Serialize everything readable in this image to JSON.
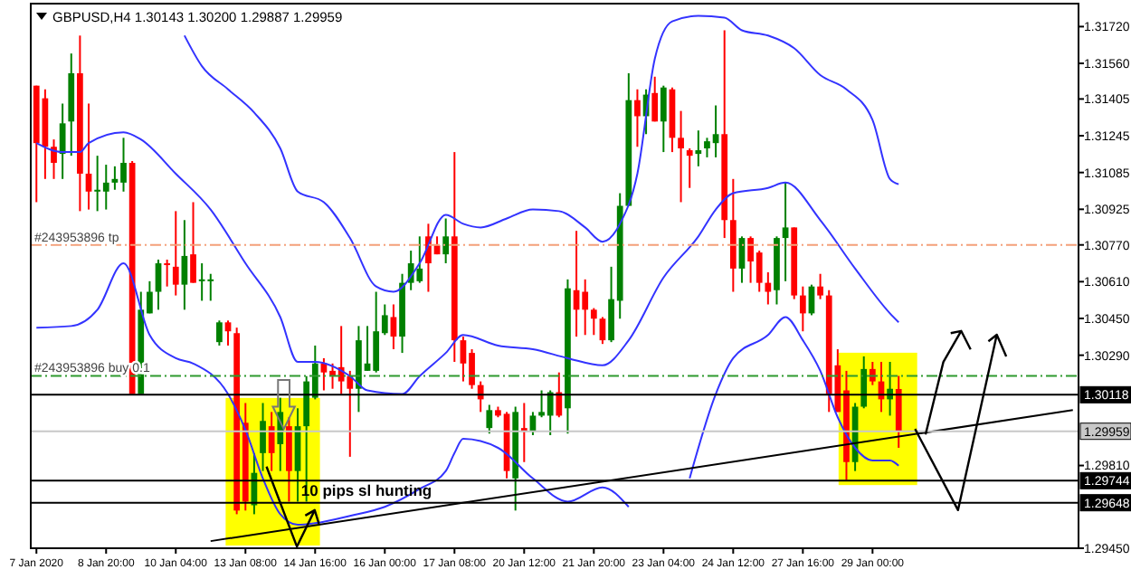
{
  "chart_data": {
    "type": "candlestick",
    "title": "GBPUSD,H4  1.30143 1.30200 1.29887 1.29959",
    "categories": [
      "7 Jan 2020",
      null,
      null,
      null,
      null,
      null,
      null,
      null,
      "8 Jan 20:00",
      null,
      null,
      null,
      null,
      null,
      null,
      null,
      "10 Jan 04:00",
      null,
      null,
      null,
      null,
      null,
      null,
      null,
      "13 Jan 08:00",
      null,
      null,
      null,
      null,
      null,
      null,
      null,
      "14 Jan 16:00",
      null,
      null,
      null,
      null,
      null,
      null,
      null,
      "16 Jan 00:00",
      null,
      null,
      null,
      null,
      null,
      null,
      null,
      "17 Jan 08:00",
      null,
      null,
      null,
      null,
      null,
      null,
      null,
      "20 Jan 12:00",
      null,
      null,
      null,
      null,
      null,
      null,
      null,
      "21 Jan 20:00",
      null,
      null,
      null,
      null,
      null,
      null,
      null,
      "23 Jan 04:00",
      null,
      null,
      null,
      null,
      null,
      null,
      null,
      "24 Jan 12:00",
      null,
      null,
      null,
      null,
      null,
      null,
      null,
      "27 Jan 16:00",
      null,
      null,
      null,
      null,
      null,
      null,
      null,
      "29 Jan 00:00",
      null,
      null,
      null,
      null,
      null,
      null,
      null,
      null,
      null,
      null,
      null,
      null,
      null,
      null,
      null,
      null,
      null,
      null,
      null,
      null,
      null,
      null,
      null
    ],
    "ohlc": [
      [
        1.31463,
        1.31463,
        1.30956,
        1.31213
      ],
      [
        1.31408,
        1.31447,
        1.31057,
        1.31197
      ],
      [
        1.31197,
        1.31229,
        1.31057,
        1.31127
      ],
      [
        1.31166,
        1.31385,
        1.31057,
        1.31299
      ],
      [
        1.31307,
        1.31603,
        1.31158,
        1.31517
      ],
      [
        1.31517,
        1.31681,
        1.30917,
        1.3108
      ],
      [
        1.3108,
        1.31385,
        1.30924,
        1.31002
      ],
      [
        1.31002,
        1.31158,
        1.30917,
        1.3101
      ],
      [
        1.31002,
        1.31119,
        1.30924,
        1.31041
      ],
      [
        1.31041,
        1.31112,
        1.3101,
        1.31057
      ],
      [
        1.31041,
        1.31236,
        1.31002,
        1.31127
      ],
      [
        1.31127,
        1.31135,
        1.30121,
        1.30121
      ],
      [
        1.30121,
        1.30566,
        1.30121,
        1.30488
      ],
      [
        1.30472,
        1.30612,
        1.30472,
        1.30566
      ],
      [
        1.30566,
        1.30706,
        1.30488,
        1.3069
      ],
      [
        1.3069,
        1.30706,
        1.30589,
        1.30683
      ],
      [
        1.30675,
        1.30917,
        1.3055,
        1.30597
      ],
      [
        1.30597,
        1.30878,
        1.30488,
        1.30722
      ],
      [
        1.30729,
        1.30956,
        1.30605,
        1.30605
      ],
      [
        1.30612,
        1.3069,
        1.30527,
        1.3062
      ],
      [
        1.30612,
        1.30644,
        1.30527,
        1.3062
      ],
      [
        1.30347,
        1.30441,
        1.30332,
        1.30433
      ],
      [
        1.30433,
        1.30441,
        1.30332,
        1.30394
      ],
      [
        1.30386,
        1.3041,
        1.29598,
        1.29614
      ],
      [
        1.29996,
        1.30082,
        1.29614,
        1.29653
      ],
      [
        1.29637,
        1.29864,
        1.29598,
        1.29778
      ],
      [
        1.29864,
        1.30082,
        1.29786,
        1.30004
      ],
      [
        1.29981,
        1.30043,
        1.29786,
        1.29864
      ],
      [
        1.29903,
        1.30105,
        1.29786,
        1.30043
      ],
      [
        1.29981,
        1.3002,
        1.29653,
        1.29786
      ],
      [
        1.29786,
        1.30059,
        1.29653,
        1.29981
      ],
      [
        1.29981,
        1.30199,
        1.29653,
        1.30176
      ],
      [
        1.30105,
        1.30332,
        1.30098,
        1.30254
      ],
      [
        1.30254,
        1.30277,
        1.30137,
        1.30215
      ],
      [
        1.30222,
        1.30254,
        1.30144,
        1.30199
      ],
      [
        1.30238,
        1.30417,
        1.30121,
        1.30176
      ],
      [
        1.30199,
        1.30222,
        1.29848,
        1.30144
      ],
      [
        1.30144,
        1.30417,
        1.30043,
        1.30355
      ],
      [
        1.30222,
        1.30417,
        1.30222,
        1.30254
      ],
      [
        1.30222,
        1.30566,
        1.30215,
        1.30394
      ],
      [
        1.30386,
        1.30511,
        1.30378,
        1.30464
      ],
      [
        1.30456,
        1.30511,
        1.30316,
        1.30371
      ],
      [
        1.30371,
        1.30644,
        1.303,
        1.30605
      ],
      [
        1.30605,
        1.30745,
        1.30573,
        1.3069
      ],
      [
        1.30612,
        1.30807,
        1.30605,
        1.30667
      ],
      [
        1.30807,
        1.30862,
        1.30566,
        1.3069
      ],
      [
        1.30768,
        1.30807,
        1.30729,
        1.30729
      ],
      [
        1.30729,
        1.30885,
        1.3069,
        1.30807
      ],
      [
        1.30807,
        1.31174,
        1.30261,
        1.30355
      ],
      [
        1.30355,
        1.30371,
        1.30176,
        1.30254
      ],
      [
        1.303,
        1.30316,
        1.30144,
        1.3016
      ],
      [
        1.3016,
        1.30176,
        1.30043,
        1.30098
      ],
      [
        1.29973,
        1.30074,
        1.29949,
        1.30051
      ],
      [
        1.30051,
        1.30066,
        1.3002,
        1.30027
      ],
      [
        1.30035,
        1.30043,
        1.29754,
        1.29786
      ],
      [
        1.29754,
        1.30066,
        1.29614,
        1.30043
      ],
      [
        1.29973,
        1.30082,
        1.29825,
        1.29957
      ],
      [
        1.29957,
        1.30043,
        1.29942,
        1.30027
      ],
      [
        1.30027,
        1.30137,
        1.3002,
        1.30043
      ],
      [
        1.30027,
        1.30137,
        1.29942,
        1.30129
      ],
      [
        1.30129,
        1.30215,
        1.3002,
        1.30027
      ],
      [
        1.30059,
        1.3062,
        1.29949,
        1.30581
      ],
      [
        1.30573,
        1.30831,
        1.30371,
        1.30488
      ],
      [
        1.30566,
        1.3062,
        1.30378,
        1.30488
      ],
      [
        1.30488,
        1.30495,
        1.30378,
        1.30449
      ],
      [
        1.30449,
        1.30456,
        1.30339,
        1.30355
      ],
      [
        1.30355,
        1.30675,
        1.30347,
        1.30534
      ],
      [
        1.30527,
        1.30995,
        1.30449,
        1.3094
      ],
      [
        1.3094,
        1.31517,
        1.3094,
        1.314
      ],
      [
        1.314,
        1.31447,
        1.31197,
        1.3133
      ],
      [
        1.3133,
        1.31447,
        1.31252,
        1.31424
      ],
      [
        1.31431,
        1.31502,
        1.31307,
        1.31307
      ],
      [
        1.31307,
        1.31463,
        1.31174,
        1.31455
      ],
      [
        1.31447,
        1.31455,
        1.31174,
        1.31236
      ],
      [
        1.31236,
        1.31353,
        1.30956,
        1.3119
      ],
      [
        1.31182,
        1.3119,
        1.31018,
        1.31158
      ],
      [
        1.31166,
        1.31268,
        1.31112,
        1.31182
      ],
      [
        1.3119,
        1.31236,
        1.31151,
        1.31221
      ],
      [
        1.31213,
        1.31377,
        1.31151,
        1.31252
      ],
      [
        1.31252,
        1.31704,
        1.308,
        1.30878
      ],
      [
        1.30878,
        1.31057,
        1.30566,
        1.30667
      ],
      [
        1.30667,
        1.30807,
        1.30605,
        1.308
      ],
      [
        1.308,
        1.30807,
        1.30605,
        1.30698
      ],
      [
        1.30737,
        1.30745,
        1.30566,
        1.30605
      ],
      [
        1.30605,
        1.30651,
        1.30511,
        1.30566
      ],
      [
        1.30573,
        1.30807,
        1.30511,
        1.308
      ],
      [
        1.308,
        1.31041,
        1.30612,
        1.30846
      ],
      [
        1.30846,
        1.30846,
        1.30534,
        1.3055
      ],
      [
        1.3055,
        1.30589,
        1.30394,
        1.30472
      ],
      [
        1.30472,
        1.30597,
        1.30464,
        1.30589
      ],
      [
        1.30589,
        1.30644,
        1.30534,
        1.3055
      ],
      [
        1.3055,
        1.30573,
        1.30043,
        1.30121
      ],
      [
        1.30246,
        1.30316,
        1.30043,
        1.30043
      ],
      [
        1.30137,
        1.30222,
        1.29747,
        1.29825
      ],
      [
        1.29825,
        1.30082,
        1.29786,
        1.30066
      ],
      [
        1.30066,
        1.30285,
        1.30059,
        1.3023
      ],
      [
        1.3023,
        1.30261,
        1.3016,
        1.30176
      ],
      [
        1.30176,
        1.30261,
        1.30043,
        1.30098
      ],
      [
        1.30098,
        1.30261,
        1.30027,
        1.30144
      ],
      [
        1.30143,
        1.302,
        1.29887,
        1.29959
      ],
      null,
      null,
      null,
      null,
      null,
      null,
      null,
      null,
      null,
      null,
      null,
      null,
      null,
      null,
      null,
      null,
      null,
      null,
      null,
      null
    ],
    "series": [
      {
        "type": "line",
        "color": "#3333ff",
        "values": [
          null,
          null,
          null,
          null,
          null,
          null,
          null,
          null,
          null,
          null,
          null,
          null,
          null,
          null,
          null,
          null,
          null,
          1.31681,
          null,
          1.31548,
          null,
          null,
          1.31447,
          null,
          null,
          1.31346,
          null,
          null,
          1.3119,
          null,
          1.31002,
          null,
          null,
          1.30956,
          null,
          null,
          1.308,
          null,
          null,
          1.30589,
          null,
          1.30566,
          null,
          null,
          1.3069,
          null,
          null,
          1.30901,
          null,
          1.30862,
          null,
          1.30846,
          null,
          null,
          1.30885,
          null,
          null,
          1.30924,
          null,
          null,
          1.30917,
          null,
          null,
          1.30846,
          null,
          1.30784,
          null,
          1.30862,
          null,
          1.3108,
          null,
          1.3158,
          null,
          1.31743,
          null,
          null,
          1.31767,
          null,
          null,
          1.31759,
          null,
          1.31704,
          null,
          null,
          1.31681,
          null,
          null,
          1.31626,
          null,
          null,
          1.31509,
          null,
          null,
          1.31447,
          null,
          null,
          1.31314,
          null,
          1.31057,
          1.31034,
          null,
          null,
          null,
          null,
          null,
          null,
          null,
          null,
          null,
          null,
          null,
          null,
          null,
          null,
          null,
          null,
          null,
          null,
          null,
          null
        ]
      },
      {
        "type": "line",
        "color": "#3333ff",
        "values": [
          1.31213,
          null,
          null,
          1.31174,
          null,
          1.31174,
          1.31213,
          null,
          null,
          null,
          1.3126,
          null,
          1.31229,
          null,
          null,
          null,
          1.3108,
          null,
          null,
          null,
          1.30924,
          null,
          null,
          null,
          1.3069,
          null,
          null,
          null,
          1.30456,
          null,
          1.30261,
          null,
          1.30261,
          null,
          null,
          null,
          1.30199,
          null,
          1.30137,
          null,
          null,
          null,
          1.30121,
          null,
          1.30199,
          null,
          null,
          1.303,
          null,
          1.30378,
          null,
          null,
          null,
          1.30332,
          null,
          null,
          null,
          1.30316,
          null,
          null,
          null,
          1.30277,
          null,
          null,
          null,
          1.30246,
          null,
          null,
          1.30355,
          null,
          null,
          null,
          1.30628,
          null,
          null,
          null,
          1.30807,
          null,
          1.30924,
          null,
          1.30995,
          null,
          null,
          null,
          1.31018,
          null,
          1.31041,
          null,
          null,
          null,
          1.30878,
          null,
          null,
          null,
          1.30667,
          null,
          null,
          null,
          1.30472,
          1.30433,
          null,
          null,
          null,
          null,
          null,
          null,
          null,
          null,
          null,
          null,
          null,
          null,
          null,
          null,
          null,
          null,
          null,
          null,
          null,
          null
        ]
      },
      {
        "type": "line",
        "color": "#3333ff",
        "values": [
          1.3041,
          null,
          null,
          null,
          1.30417,
          null,
          null,
          1.30488,
          null,
          null,
          1.3069,
          null,
          null,
          1.30378,
          null,
          null,
          1.30277,
          null,
          1.30254,
          null,
          null,
          null,
          1.30121,
          null,
          1.29965,
          null,
          1.29754,
          null,
          1.29598,
          null,
          1.29552,
          null,
          1.29559,
          null,
          null,
          null,
          1.29591,
          null,
          null,
          null,
          1.2963,
          null,
          null,
          null,
          1.29708,
          null,
          null,
          1.29786,
          1.29864,
          1.29926,
          null,
          null,
          null,
          1.29887,
          null,
          null,
          null,
          1.29754,
          null,
          null,
          null,
          1.29653,
          null,
          null,
          null,
          1.29715,
          null,
          null,
          1.2963,
          null,
          null,
          null,
          null,
          null,
          null,
          null,
          null,
          null,
          null,
          null,
          null,
          null,
          null,
          null,
          null,
          null,
          null,
          null,
          null,
          null,
          null,
          null,
          null,
          null,
          null,
          null,
          null,
          null,
          null,
          null,
          null,
          null,
          null,
          null,
          null,
          null,
          null,
          null,
          null,
          null,
          null,
          null,
          null,
          null,
          null,
          null,
          null,
          null,
          null,
          null
        ]
      },
      {
        "type": "line",
        "color": "#3333ff",
        "values": [
          null,
          null,
          null,
          null,
          null,
          null,
          null,
          null,
          null,
          null,
          null,
          null,
          null,
          null,
          null,
          null,
          null,
          null,
          null,
          null,
          null,
          null,
          null,
          null,
          null,
          null,
          null,
          null,
          null,
          null,
          null,
          null,
          null,
          null,
          null,
          null,
          null,
          null,
          null,
          null,
          null,
          null,
          null,
          null,
          null,
          null,
          null,
          null,
          null,
          null,
          null,
          null,
          null,
          null,
          null,
          null,
          null,
          null,
          null,
          null,
          null,
          null,
          null,
          null,
          null,
          null,
          null,
          null,
          null,
          null,
          null,
          null,
          null,
          null,
          null,
          1.29754,
          null,
          null,
          1.30121,
          null,
          1.30277,
          null,
          null,
          null,
          1.30378,
          null,
          1.30456,
          null,
          1.30355,
          null,
          1.30222,
          null,
          1.3002,
          null,
          1.29887,
          null,
          1.29832,
          null,
          1.29832,
          1.29809,
          null,
          null,
          null,
          null,
          null,
          null,
          null,
          null,
          null,
          null,
          null,
          null,
          null,
          null,
          null,
          null,
          null,
          null,
          null,
          null
        ]
      },
      {
        "type": "line",
        "color": "#000000",
        "values": [
          null,
          null,
          null,
          null,
          null,
          null,
          null,
          null,
          null,
          null,
          null,
          null,
          null,
          null,
          null,
          null,
          null,
          null,
          null,
          null,
          1.29481,
          null,
          null,
          null,
          null,
          null,
          null,
          null,
          null,
          null,
          null,
          null,
          null,
          null,
          null,
          null,
          null,
          null,
          null,
          null,
          null,
          null,
          null,
          null,
          null,
          null,
          null,
          null,
          null,
          null,
          null,
          null,
          null,
          null,
          null,
          null,
          null,
          null,
          null,
          null,
          null,
          null,
          null,
          null,
          null,
          null,
          null,
          null,
          null,
          null,
          null,
          null,
          null,
          null,
          null,
          null,
          null,
          null,
          null,
          null,
          null,
          null,
          null,
          null,
          null,
          null,
          null,
          null,
          null,
          null,
          null,
          null,
          null,
          null,
          null,
          null,
          null,
          null,
          null,
          null,
          null,
          null,
          null,
          null,
          null,
          null,
          null,
          null,
          null,
          null,
          null,
          null,
          null,
          null,
          null,
          null,
          null,
          null,
          null,
          1.30051
        ]
      }
    ],
    "ylim": [
      1.2945,
      1.3182
    ],
    "yticks": [
      {
        "value": 1.3172,
        "label": "1.31720"
      },
      {
        "value": 1.3156,
        "label": "1.31560"
      },
      {
        "value": 1.31405,
        "label": "1.31405"
      },
      {
        "value": 1.31245,
        "label": "1.31245"
      },
      {
        "value": 1.31085,
        "label": "1.31085"
      },
      {
        "value": 1.30925,
        "label": "1.30925"
      },
      {
        "value": 1.3077,
        "label": "1.30770"
      },
      {
        "value": 1.3061,
        "label": "1.30610"
      },
      {
        "value": 1.3045,
        "label": "1.30450"
      },
      {
        "value": 1.3029,
        "label": "1.30290"
      },
      {
        "value": 1.2981,
        "label": "1.29810"
      },
      {
        "value": 1.2945,
        "label": "1.29450"
      }
    ],
    "ref_lines": [
      {
        "axis": "y",
        "value": 1.3077,
        "label": "#243953896 tp",
        "color": "#f4a07a",
        "line_style": "dashed"
      },
      {
        "axis": "y",
        "value": 1.302,
        "label": "#243953896 buy 0.1",
        "color": "#2e9a2e",
        "line_style": "dashed"
      },
      {
        "axis": "y",
        "value": 1.30118,
        "label": "1.30118",
        "color": "#000000",
        "line_style": "solid"
      },
      {
        "axis": "y",
        "value": 1.29959,
        "label": "1.29959",
        "color": "#c8c8c8",
        "line_style": "solid"
      },
      {
        "axis": "y",
        "value": 1.29744,
        "label": "1.29744",
        "color": "#000000",
        "line_style": "solid"
      },
      {
        "axis": "y",
        "value": 1.29648,
        "label": "1.29648",
        "color": "#000000",
        "line_style": "solid"
      }
    ],
    "annotations": [
      {
        "text": "10 pips sl hunting",
        "y": 1.2968
      }
    ]
  }
}
